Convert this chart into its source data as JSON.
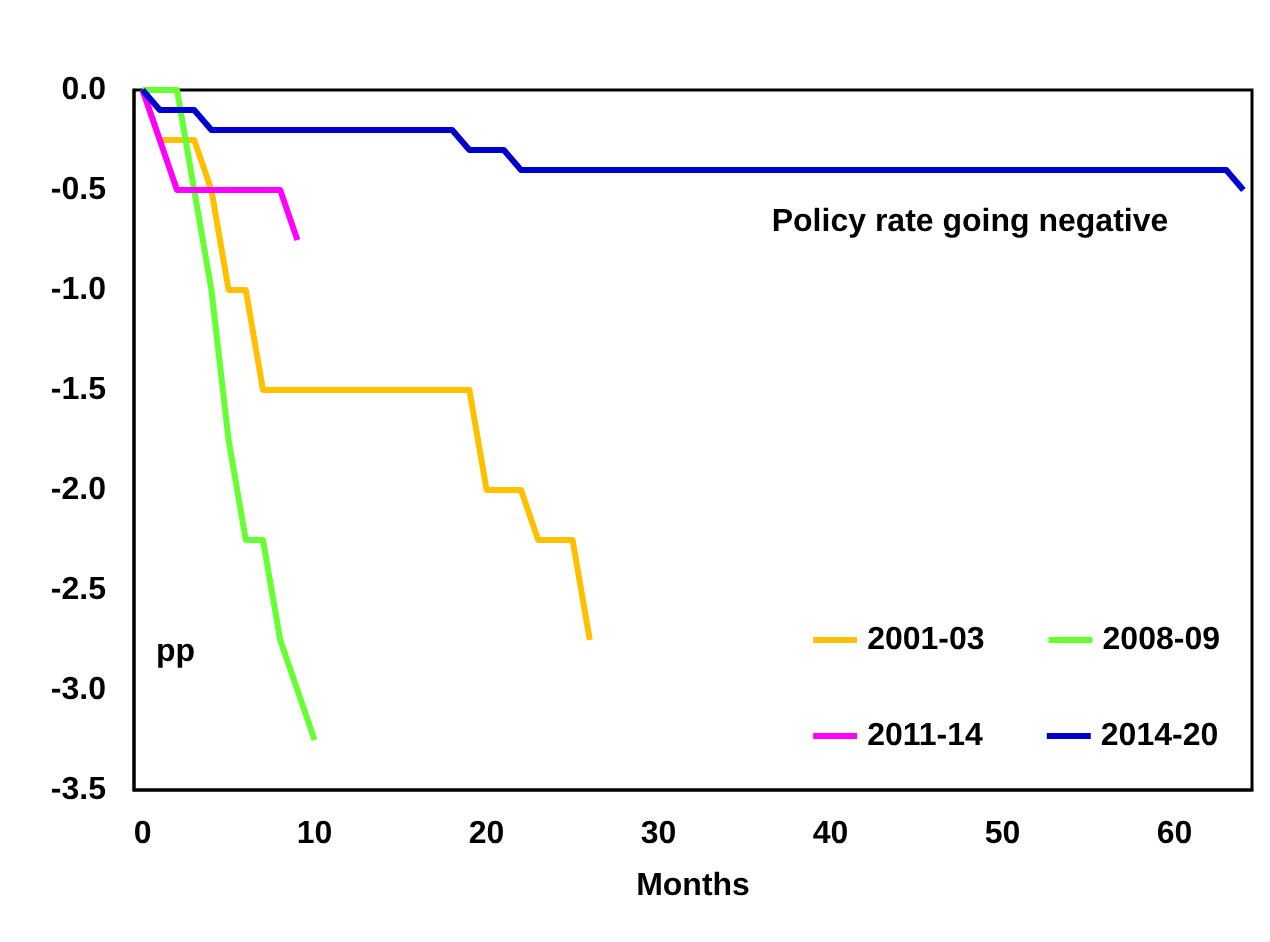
{
  "chart_data": {
    "type": "line",
    "xlabel": "Months",
    "ylabel": "pp",
    "annotations": [
      "Policy rate going negative"
    ],
    "xlim": [
      -0.5,
      64.5
    ],
    "xticks": [
      0,
      10,
      20,
      30,
      40,
      50,
      60
    ],
    "ylim": [
      -3.5,
      0
    ],
    "yticks": [
      {
        "value": -3.5,
        "label": "-3.5"
      },
      {
        "value": -3,
        "label": "-3.0"
      },
      {
        "value": -2.5,
        "label": "-2.5"
      },
      {
        "value": -2,
        "label": "-2.0"
      },
      {
        "value": -1.5,
        "label": "-1.5"
      },
      {
        "value": -1,
        "label": "-1.0"
      },
      {
        "value": -0.5,
        "label": "-0.5"
      },
      {
        "value": 0,
        "label": "0.0"
      }
    ],
    "legend": "bottom right",
    "series": [
      {
        "name": "2001-03",
        "color": "#ffc000",
        "x": [
          0,
          1,
          3,
          4,
          5,
          6,
          7,
          19,
          20,
          22,
          23,
          25,
          26
        ],
        "values": [
          0,
          -0.25,
          -0.25,
          -0.5,
          -1,
          -1,
          -1.5,
          -1.5,
          -2,
          -2,
          -2.25,
          -2.25,
          -2.75
        ]
      },
      {
        "name": "2008-09",
        "color": "#66ff33",
        "x": [
          0,
          2,
          3,
          4,
          5,
          6,
          7,
          8,
          10
        ],
        "values": [
          0,
          0,
          -0.5,
          -1,
          -1.75,
          -2.25,
          -2.25,
          -2.75,
          -3.25
        ]
      },
      {
        "name": "2011-14",
        "color": "#ff00ff",
        "x": [
          0,
          2,
          8,
          9
        ],
        "values": [
          0,
          -0.5,
          -0.5,
          -0.75
        ]
      },
      {
        "name": "2014-20",
        "color": "#0000cc",
        "x": [
          0,
          1,
          3,
          4,
          18,
          19,
          21,
          22,
          63,
          64
        ],
        "values": [
          0,
          -0.1,
          -0.1,
          -0.2,
          -0.2,
          -0.3,
          -0.3,
          -0.4,
          -0.4,
          -0.5
        ]
      }
    ]
  }
}
